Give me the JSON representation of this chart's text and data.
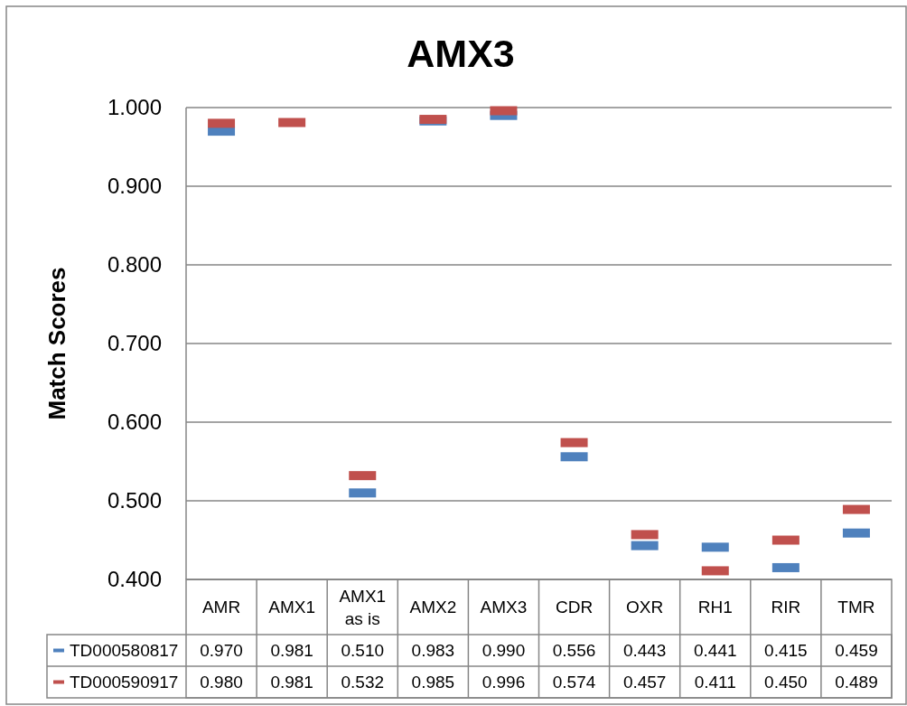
{
  "chart_data": {
    "type": "scatter",
    "title": "AMX3",
    "ylabel": "Match Scores",
    "categories": [
      "AMR",
      "AMX1",
      "AMX1 as is",
      "AMX2",
      "AMX3",
      "CDR",
      "OXR",
      "RH1",
      "RIR",
      "TMR"
    ],
    "series": [
      {
        "name": "TD000580817",
        "color": "#4f81bd",
        "values": [
          0.97,
          null,
          0.51,
          0.983,
          0.99,
          0.556,
          0.443,
          0.441,
          0.415,
          0.459
        ],
        "value_labels": [
          "0.970",
          "0.981",
          "0.510",
          "0.983",
          "0.990",
          "0.556",
          "0.443",
          "0.441",
          "0.415",
          "0.459"
        ]
      },
      {
        "name": "TD000590917",
        "color": "#c0504d",
        "values": [
          0.98,
          0.981,
          0.532,
          0.985,
          0.996,
          0.574,
          0.457,
          0.411,
          0.45,
          0.489
        ],
        "value_labels": [
          "0.980",
          "0.981",
          "0.532",
          "0.985",
          "0.996",
          "0.574",
          "0.457",
          "0.411",
          "0.450",
          "0.489"
        ]
      }
    ],
    "ylim": [
      0.4,
      1.0
    ],
    "yticks": [
      {
        "value": 0.4,
        "label": "0.400"
      },
      {
        "value": 0.5,
        "label": "0.500"
      },
      {
        "value": 0.6,
        "label": "0.600"
      },
      {
        "value": 0.7,
        "label": "0.700"
      },
      {
        "value": 0.8,
        "label": "0.800"
      },
      {
        "value": 0.9,
        "label": "0.900"
      },
      {
        "value": 1.0,
        "label": "1.000"
      }
    ],
    "grid": "y",
    "legend": "bottom"
  }
}
